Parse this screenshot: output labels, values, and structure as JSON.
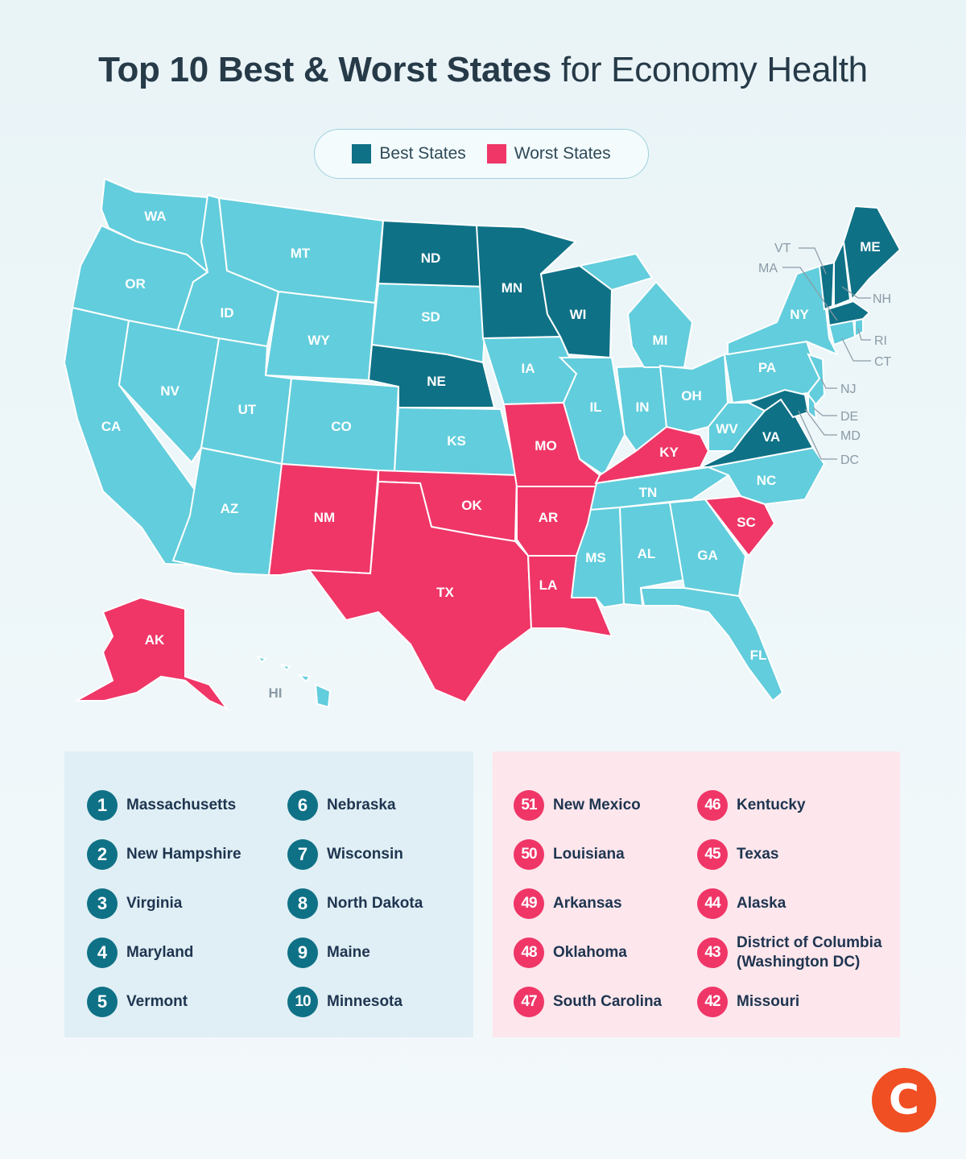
{
  "title": {
    "bold": "Top 10 Best & Worst States",
    "regular": "for Economy Health"
  },
  "colors": {
    "best": "#0f7186",
    "worst": "#ef3667",
    "neutral": "#62cddc",
    "text": "#263a48"
  },
  "legend": {
    "best_label": "Best States",
    "worst_label": "Worst States"
  },
  "map": {
    "labels": {
      "WA": "WA",
      "OR": "OR",
      "CA": "CA",
      "ID": "ID",
      "NV": "NV",
      "MT": "MT",
      "WY": "WY",
      "UT": "UT",
      "AZ": "AZ",
      "CO": "CO",
      "NM": "NM",
      "ND": "ND",
      "SD": "SD",
      "NE": "NE",
      "KS": "KS",
      "OK": "OK",
      "TX": "TX",
      "MN": "MN",
      "IA": "IA",
      "MO": "MO",
      "AR": "AR",
      "LA": "LA",
      "WI": "WI",
      "IL": "IL",
      "MI": "MI",
      "IN": "IN",
      "OH": "OH",
      "KY": "KY",
      "TN": "TN",
      "MS": "MS",
      "AL": "AL",
      "GA": "GA",
      "FL": "FL",
      "SC": "SC",
      "NC": "NC",
      "VA": "VA",
      "WV": "WV",
      "PA": "PA",
      "NY": "NY",
      "ME": "ME",
      "AK": "AK",
      "HI": "HI",
      "VT": "VT",
      "MA": "MA",
      "NH": "NH",
      "RI": "RI",
      "CT": "CT",
      "NJ": "NJ",
      "DE": "DE",
      "MD": "MD",
      "DC": "DC"
    }
  },
  "best": [
    {
      "rank": "1",
      "name": "Massachusetts"
    },
    {
      "rank": "2",
      "name": "New Hampshire"
    },
    {
      "rank": "3",
      "name": "Virginia"
    },
    {
      "rank": "4",
      "name": "Maryland"
    },
    {
      "rank": "5",
      "name": "Vermont"
    },
    {
      "rank": "6",
      "name": "Nebraska"
    },
    {
      "rank": "7",
      "name": "Wisconsin"
    },
    {
      "rank": "8",
      "name": "North Dakota"
    },
    {
      "rank": "9",
      "name": "Maine"
    },
    {
      "rank": "10",
      "name": "Minnesota"
    }
  ],
  "worst": [
    {
      "rank": "51",
      "name": "New Mexico"
    },
    {
      "rank": "50",
      "name": "Louisiana"
    },
    {
      "rank": "49",
      "name": "Arkansas"
    },
    {
      "rank": "48",
      "name": "Oklahoma"
    },
    {
      "rank": "47",
      "name": "South Carolina"
    },
    {
      "rank": "46",
      "name": "Kentucky"
    },
    {
      "rank": "45",
      "name": "Texas"
    },
    {
      "rank": "44",
      "name": "Alaska"
    },
    {
      "rank": "43",
      "name": "District of Columbia (Washington DC)"
    },
    {
      "rank": "42",
      "name": "Missouri"
    }
  ],
  "logo": {
    "glyph": "C"
  }
}
